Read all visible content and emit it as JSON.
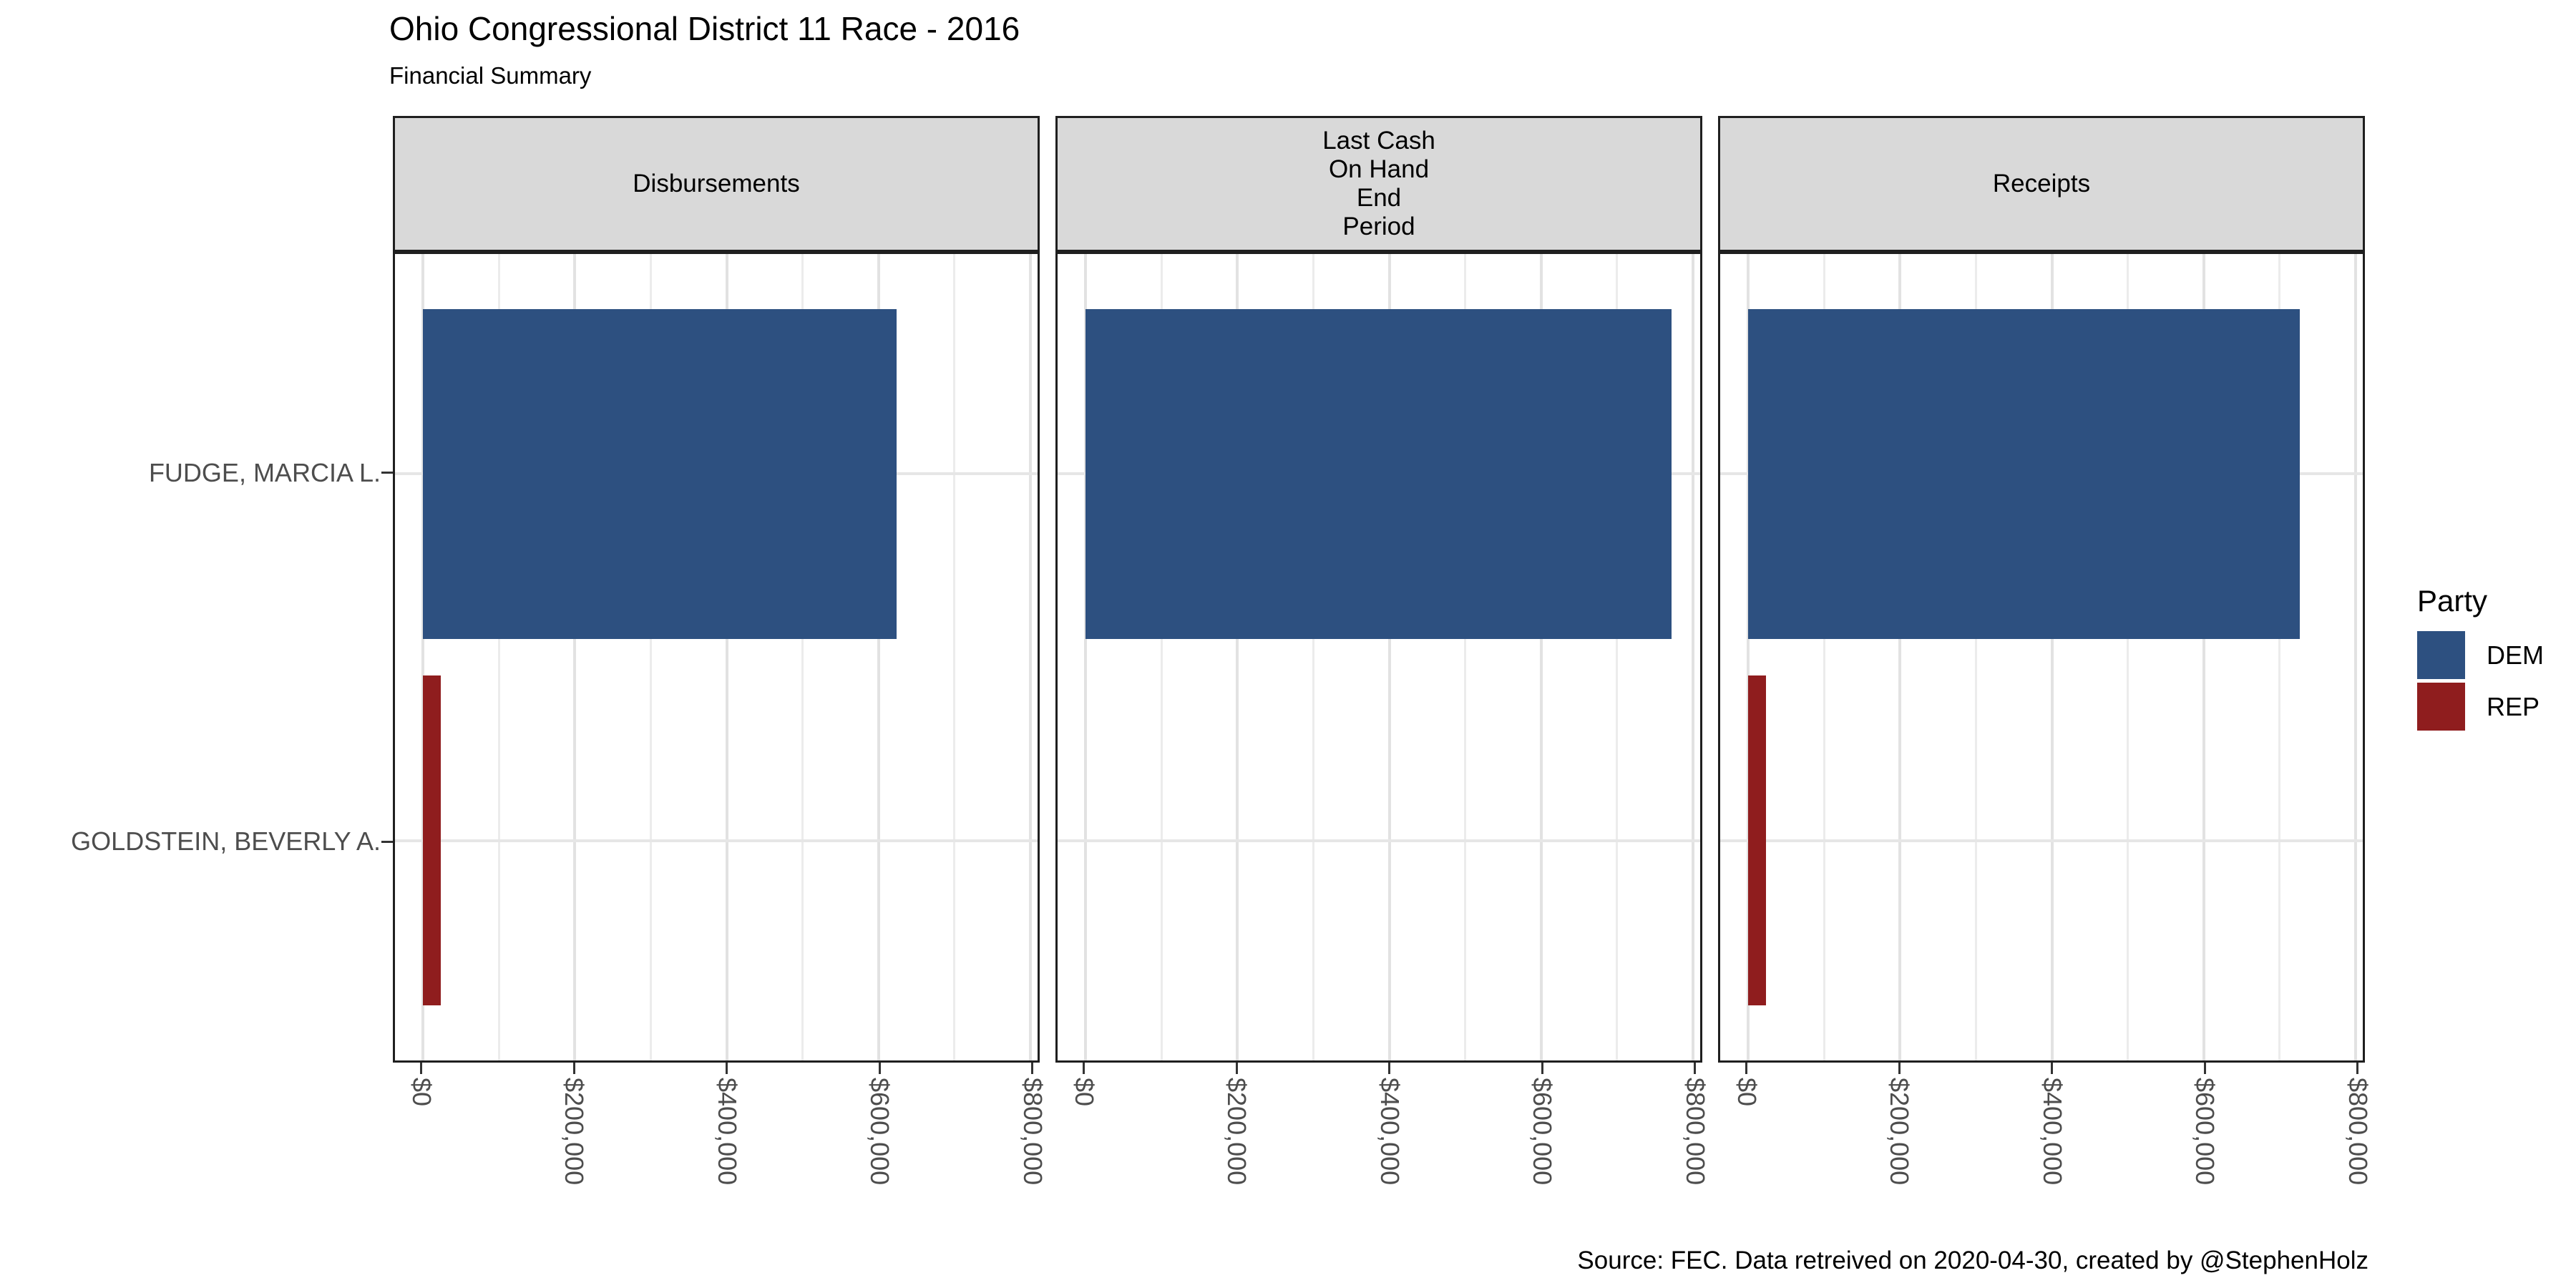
{
  "title": "Ohio Congressional District 11 Race - 2016",
  "subtitle": "Financial Summary",
  "caption": "Source: FEC. Data retreived on 2020-04-30, created by @StephenHolz",
  "colors": {
    "DEM": "#2D5080",
    "REP": "#8F1D1E",
    "strip_background": "#D9D9D9",
    "panel_border": "#1F1F1F",
    "grid_major": "#E2E2E2",
    "grid_minor": "#ECECEC",
    "axis_text": "#4D4D4D"
  },
  "legend": {
    "title": "Party",
    "entries": [
      {
        "label": "DEM",
        "party": "DEM"
      },
      {
        "label": "REP",
        "party": "REP"
      }
    ]
  },
  "x_axis": {
    "tick_labels": [
      "$0",
      "$200,000",
      "$400,000",
      "$600,000",
      "$800,000"
    ],
    "tick_values": [
      0,
      200000,
      400000,
      600000,
      800000
    ],
    "minor_values": [
      100000,
      300000,
      500000,
      700000
    ],
    "max": 800000
  },
  "chart_data": {
    "type": "bar",
    "orientation": "horizontal",
    "title": "Ohio Congressional District 11 Race - 2016",
    "subtitle": "Financial Summary",
    "facets": [
      "Disbursements",
      "Last Cash\nOn Hand\nEnd\nPeriod",
      "Receipts"
    ],
    "categories": [
      "FUDGE, MARCIA L.",
      "GOLDSTEIN, BEVERLY A."
    ],
    "series": [
      {
        "name": "FUDGE, MARCIA L.",
        "party": "DEM",
        "values": [
          624000,
          772000,
          727000
        ]
      },
      {
        "name": "GOLDSTEIN, BEVERLY A.",
        "party": "REP",
        "values": [
          23000,
          0,
          23000
        ]
      }
    ],
    "xlim": [
      0,
      800000
    ],
    "grid": true,
    "legend_position": "right"
  }
}
